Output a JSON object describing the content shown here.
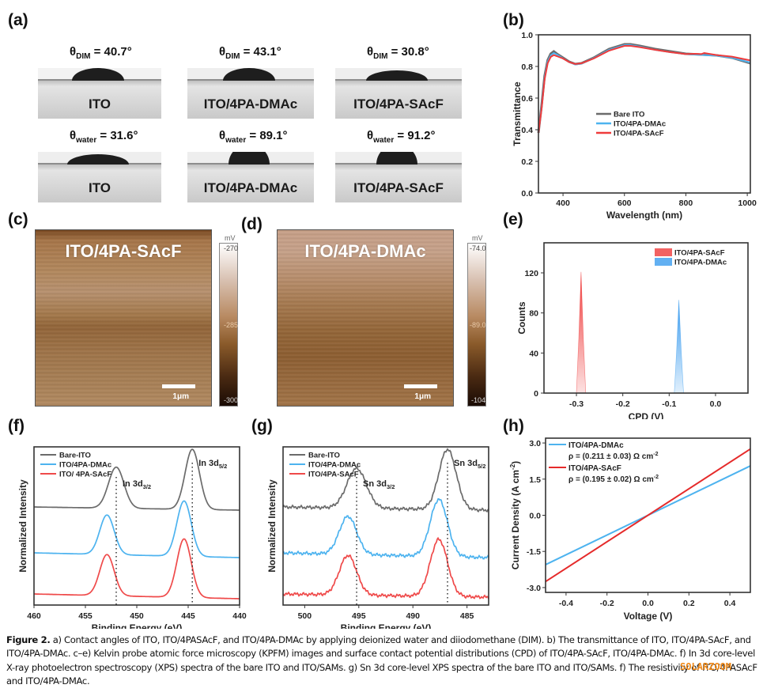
{
  "panels": {
    "a": "(a)",
    "b": "(b)",
    "c": "(c)",
    "d": "(d)",
    "e": "(e)",
    "f": "(f)",
    "g": "(g)",
    "h": "(h)"
  },
  "contact_angles": {
    "rows": [
      {
        "liquid": "DIM",
        "theta_symbol": "θ",
        "items": [
          {
            "sample": "ITO",
            "angle": "40.7°",
            "value": 40.7
          },
          {
            "sample": "ITO/4PA-DMAc",
            "angle": "43.1°",
            "value": 43.1
          },
          {
            "sample": "ITO/4PA-SAcF",
            "angle": "30.8°",
            "value": 30.8
          }
        ]
      },
      {
        "liquid": "water",
        "theta_symbol": "θ",
        "items": [
          {
            "sample": "ITO",
            "angle": "31.6°",
            "value": 31.6
          },
          {
            "sample": "ITO/4PA-DMAc",
            "angle": "89.1°",
            "value": 89.1
          },
          {
            "sample": "ITO/4PA-SAcF",
            "angle": "91.2°",
            "value": 91.2
          }
        ]
      }
    ],
    "equals": " = "
  },
  "afm": {
    "c": {
      "title": "ITO/4PA-SAcF",
      "unit": "mV",
      "max": "-270",
      "mid": "-285",
      "min": "-300",
      "scalebar": "1μm"
    },
    "d": {
      "title": "ITO/4PA-DMAc",
      "unit": "mV",
      "max": "-74.0",
      "mid": "-89.0",
      "min": "-104",
      "scalebar": "1μm"
    }
  },
  "chart_data": [
    {
      "id": "b",
      "type": "line",
      "title": "",
      "xlabel": "Wavelength (nm)",
      "ylabel": "Transmittance",
      "xlim": [
        320,
        1010
      ],
      "ylim": [
        0.0,
        1.0
      ],
      "xticks": [
        400,
        600,
        800,
        1000
      ],
      "yticks": [
        0.0,
        0.2,
        0.4,
        0.6,
        0.8,
        1.0
      ],
      "ytick_labels": [
        "0.0",
        "0.2",
        "0.4",
        "0.6",
        "0.8",
        "1.0"
      ],
      "legend_position": "center",
      "series": [
        {
          "name": "Bare ITO",
          "color": "#6b6b6b",
          "x": [
            320,
            330,
            340,
            350,
            360,
            370,
            380,
            400,
            420,
            440,
            460,
            500,
            550,
            600,
            620,
            650,
            700,
            750,
            800,
            850,
            900,
            950,
            1010
          ],
          "y": [
            0.38,
            0.55,
            0.74,
            0.84,
            0.88,
            0.895,
            0.88,
            0.855,
            0.83,
            0.815,
            0.82,
            0.855,
            0.91,
            0.94,
            0.94,
            0.93,
            0.91,
            0.895,
            0.88,
            0.875,
            0.87,
            0.855,
            0.82
          ]
        },
        {
          "name": "ITO/4PA-DMAc",
          "color": "#4db3ef",
          "x": [
            320,
            330,
            340,
            350,
            360,
            370,
            380,
            400,
            420,
            440,
            460,
            500,
            550,
            600,
            620,
            650,
            700,
            750,
            800,
            850,
            900,
            950,
            1010
          ],
          "y": [
            0.38,
            0.54,
            0.73,
            0.83,
            0.87,
            0.885,
            0.875,
            0.85,
            0.828,
            0.812,
            0.818,
            0.852,
            0.905,
            0.935,
            0.935,
            0.925,
            0.905,
            0.89,
            0.878,
            0.873,
            0.868,
            0.855,
            0.825
          ]
        },
        {
          "name": "ITO/4PA-SAcF",
          "color": "#ef3b3b",
          "x": [
            320,
            330,
            340,
            350,
            360,
            370,
            380,
            400,
            420,
            440,
            460,
            500,
            550,
            600,
            620,
            650,
            700,
            750,
            800,
            830,
            850,
            860,
            900,
            950,
            1010
          ],
          "y": [
            0.38,
            0.53,
            0.72,
            0.82,
            0.86,
            0.872,
            0.865,
            0.85,
            0.828,
            0.815,
            0.82,
            0.85,
            0.9,
            0.93,
            0.93,
            0.922,
            0.905,
            0.89,
            0.878,
            0.88,
            0.878,
            0.885,
            0.872,
            0.862,
            0.838
          ]
        }
      ]
    },
    {
      "id": "e",
      "type": "area",
      "title": "",
      "xlabel": "CPD (V)",
      "ylabel": "Counts",
      "xlim": [
        -0.37,
        0.07
      ],
      "ylim": [
        0,
        150
      ],
      "xticks": [
        -0.3,
        -0.2,
        -0.1,
        0.0
      ],
      "xtick_labels": [
        "-0.3",
        "-0.2",
        "-0.1",
        "0.0"
      ],
      "yticks": [
        0,
        40,
        80,
        120
      ],
      "legend_position": "top-right",
      "series": [
        {
          "name": "ITO/4PA-SAcF",
          "color": "#ef3b3b",
          "center": -0.29,
          "width": 0.02,
          "peak": 121
        },
        {
          "name": "ITO/4PA-DMAc",
          "color": "#3b9cef",
          "center": -0.079,
          "width": 0.02,
          "peak": 93
        }
      ]
    },
    {
      "id": "f",
      "type": "line",
      "title": "",
      "xlabel": "Binding Energy (eV)",
      "ylabel": "Normalized Intensity",
      "xlim": [
        460,
        440
      ],
      "xticks": [
        460,
        455,
        450,
        445,
        440
      ],
      "ylim": [
        0,
        1
      ],
      "legend_position": "top-left",
      "annotations": [
        {
          "text": "In 3d",
          "sub": "3/2",
          "x": 452.0
        },
        {
          "text": "In 3d",
          "sub": "5/2",
          "x": 444.6
        }
      ],
      "series": [
        {
          "name": "Bare-ITO",
          "color": "#6b6b6b",
          "offset": 0.62,
          "baseline_drift": -0.02,
          "peaks": [
            [
              452.0,
              0.26,
              0.75
            ],
            [
              444.6,
              0.38,
              0.7
            ]
          ]
        },
        {
          "name": "ITO/4PA-DMAc",
          "color": "#4db3ef",
          "offset": 0.33,
          "baseline_drift": -0.03,
          "peaks": [
            [
              452.9,
              0.25,
              0.7
            ],
            [
              445.4,
              0.35,
              0.7
            ]
          ]
        },
        {
          "name": "ITO/ 4PA-SAcF",
          "color": "#ef4a4a",
          "offset": 0.07,
          "baseline_drift": -0.03,
          "peaks": [
            [
              452.9,
              0.26,
              0.7
            ],
            [
              445.4,
              0.37,
              0.7
            ]
          ]
        }
      ]
    },
    {
      "id": "g",
      "type": "line",
      "title": "",
      "xlabel": "Binding Energy (eV)",
      "ylabel": "Normalized Intensity",
      "xlim": [
        502,
        483
      ],
      "xticks": [
        500,
        495,
        490,
        485
      ],
      "ylim": [
        0,
        1
      ],
      "legend_position": "top-left",
      "annotations": [
        {
          "text": "Sn 3d",
          "sub": "3/2",
          "x": 495.2
        },
        {
          "text": "Sn 3d",
          "sub": "5/2",
          "x": 486.8
        }
      ],
      "series": [
        {
          "name": "Bare-ITO",
          "color": "#6b6b6b",
          "offset": 0.62,
          "baseline_drift": -0.02,
          "peaks": [
            [
              495.2,
              0.25,
              0.9
            ],
            [
              486.8,
              0.38,
              0.8
            ]
          ]
        },
        {
          "name": "ITO/4PA-DMAc",
          "color": "#4db3ef",
          "offset": 0.33,
          "baseline_drift": -0.03,
          "peaks": [
            [
              496.0,
              0.24,
              0.8
            ],
            [
              487.6,
              0.36,
              0.8
            ]
          ]
        },
        {
          "name": "ITO/4PA-SAcF",
          "color": "#ef4a4a",
          "offset": 0.07,
          "baseline_drift": -0.02,
          "peaks": [
            [
              496.0,
              0.25,
              0.8
            ],
            [
              487.6,
              0.36,
              0.8
            ]
          ]
        }
      ]
    },
    {
      "id": "h",
      "type": "line",
      "title": "",
      "xlabel": "Voltage (V)",
      "ylabel": "Current Density (A cm",
      "ylabel_sup": "-2",
      "ylabel_end": ")",
      "xlim": [
        -0.5,
        0.5
      ],
      "ylim": [
        -3.2,
        3.2
      ],
      "xticks": [
        -0.4,
        -0.2,
        0.0,
        0.2,
        0.4
      ],
      "xtick_labels": [
        "-0.4",
        "-0.2",
        "0.0",
        "0.2",
        "0.4"
      ],
      "yticks": [
        -3.0,
        -1.5,
        0.0,
        1.5,
        3.0
      ],
      "ytick_labels": [
        "-3.0",
        "-1.5",
        "0.0",
        "1.5",
        "3.0"
      ],
      "legend_position": "top-left",
      "series": [
        {
          "name": "ITO/4PA-DMAc",
          "color": "#4db3ef",
          "note": "ρ = (0.211 ± 0.03) Ω cm",
          "note_sup": "-2",
          "x": [
            -0.5,
            0.5
          ],
          "y": [
            -2.05,
            2.05
          ]
        },
        {
          "name": "ITO/4PA-SAcF",
          "color": "#e52a2a",
          "note": "ρ = (0.195 ± 0.02) Ω cm",
          "note_sup": "-2",
          "x": [
            -0.5,
            0.5
          ],
          "y": [
            -2.75,
            2.75
          ]
        }
      ]
    }
  ],
  "caption": {
    "label": "Figure 2.",
    "text": " a) Contact angles of ITO, ITO/4PASAcF, and ITO/4PA-DMAc by applying deionized water and diiodomethane (DIM). b) The transmittance of ITO, ITO/4PA-SAcF, and ITO/4PA-DMAc. c–e) Kelvin probe atomic force microscopy (KPFM) images and surface contact potential distributions (CPD) of ITO/4PA-SAcF, ITO/4PA-DMAc. f) In 3d core-level X-ray photoelectron spectroscopy (XPS) spectra of the bare ITO and ITO/SAMs. g) Sn 3d core-level XPS spectra of the bare ITO and ITO/SAMs. f) The resistivity of ITO/4PASAcF and ITO/4PA-DMAc."
  },
  "watermark": "SOLARZOOM"
}
